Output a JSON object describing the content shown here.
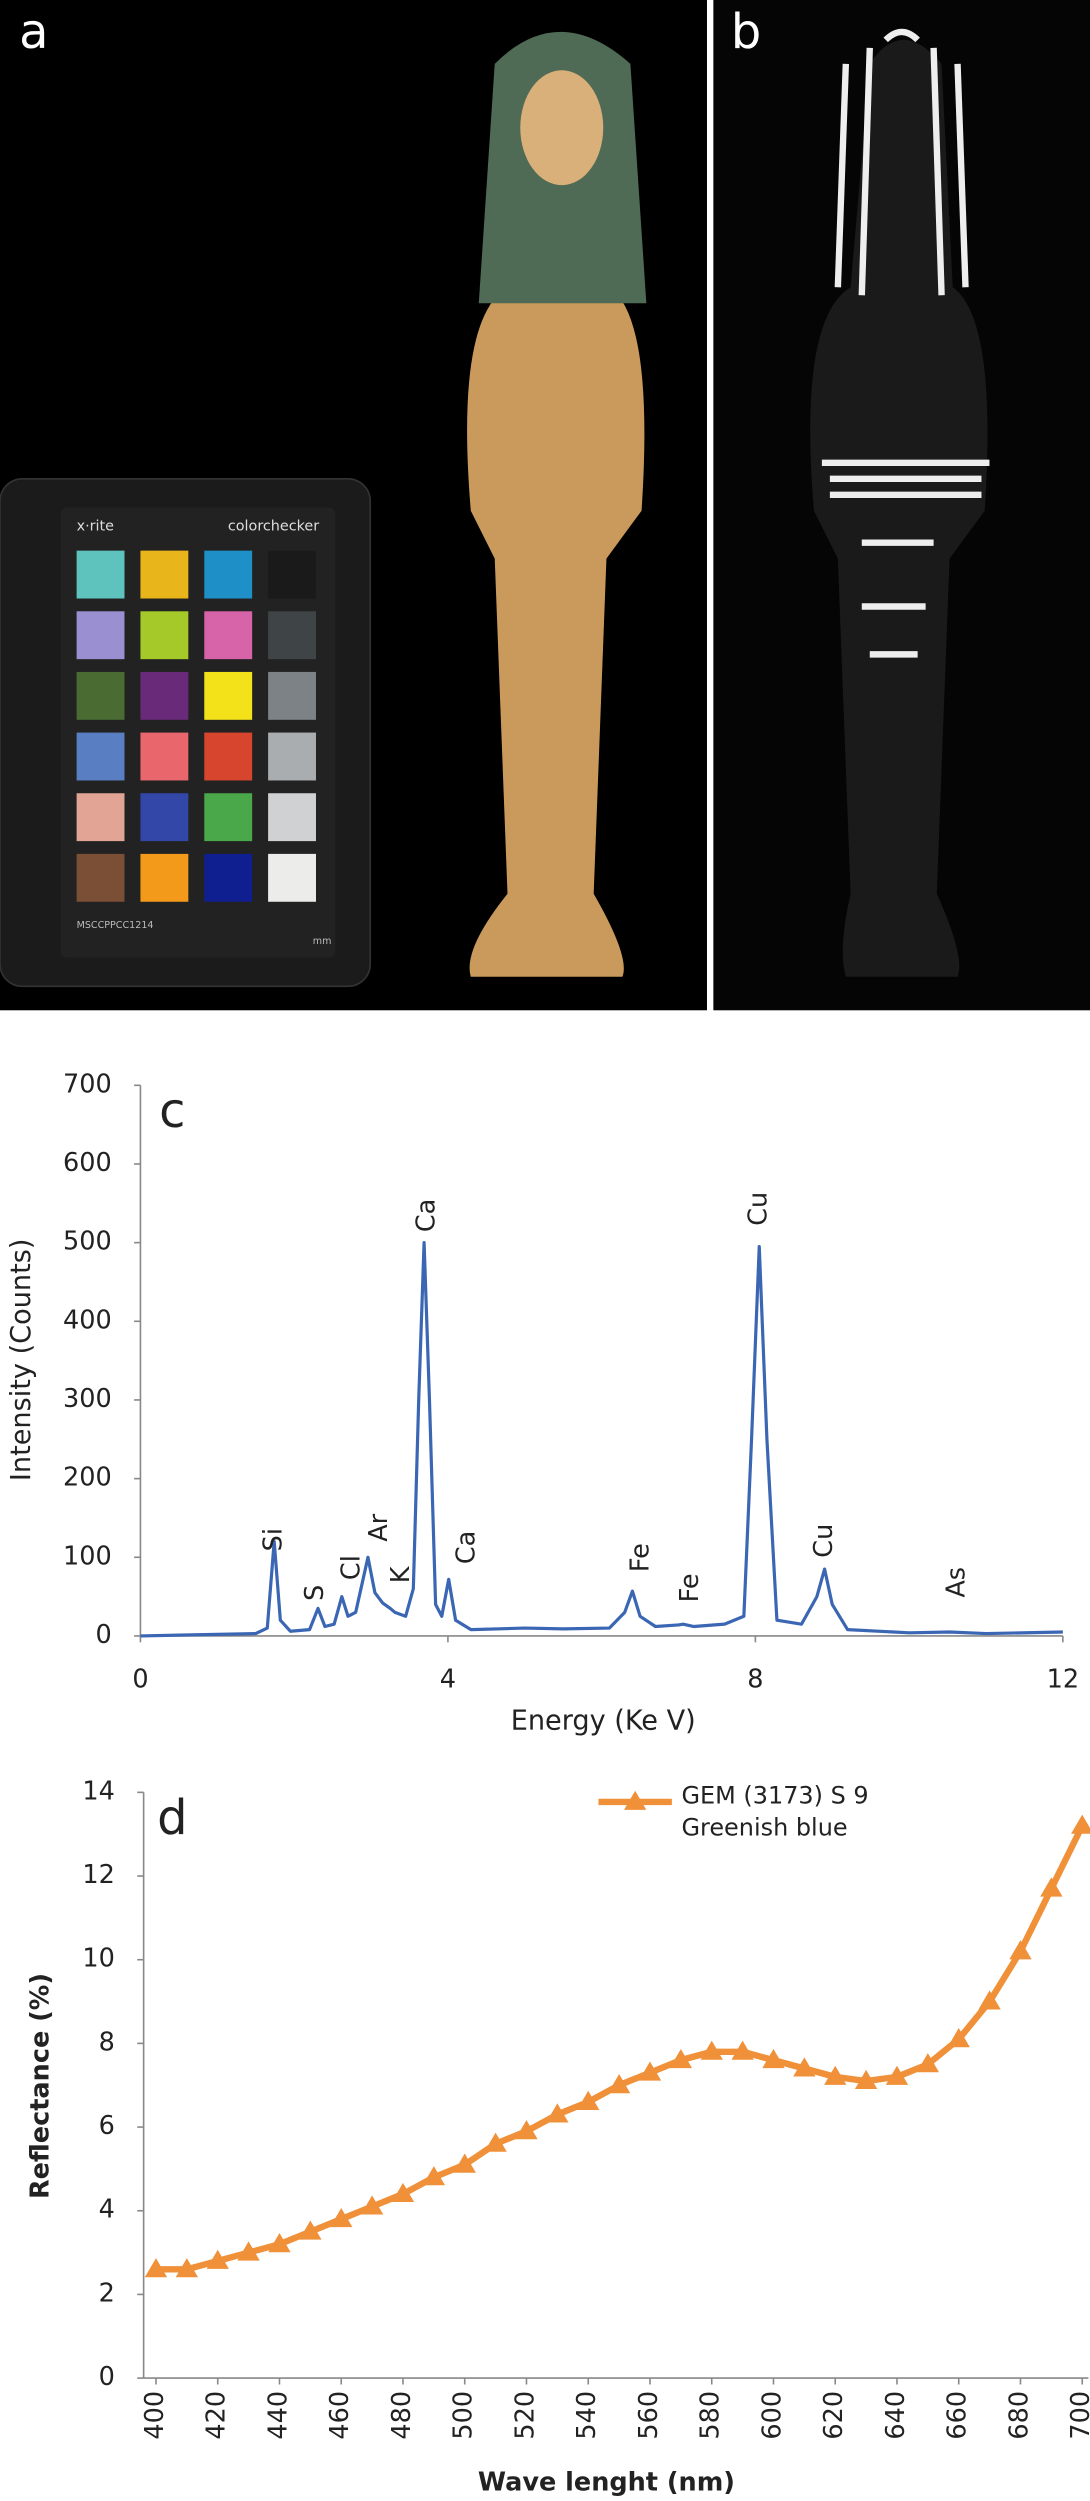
{
  "photos": {
    "panel_a": "a",
    "panel_b": "b",
    "card_brand": "x·rite",
    "card_name": "colorchecker",
    "card_code": "MSCCPPCC1214",
    "card_unit": "mm"
  },
  "chart_data": [
    {
      "type": "line",
      "panel_label": "c",
      "x_label": "Energy (Ke V)",
      "y_label": "Intensity (Counts)",
      "xlim": [
        0,
        12
      ],
      "ylim": [
        0,
        700
      ],
      "xticks": [
        0,
        4,
        8,
        12
      ],
      "yticks": [
        0,
        100,
        200,
        300,
        400,
        500,
        600,
        700
      ],
      "grid": false,
      "annotations": [
        "Si",
        "S",
        "Cl",
        "Ar",
        "K",
        "Ca",
        "Ca",
        "Fe",
        "Fe",
        "Cu",
        "Cu",
        "As"
      ],
      "x": [
        0,
        0.5,
        1.0,
        1.5,
        1.65,
        1.74,
        1.82,
        1.95,
        2.2,
        2.31,
        2.4,
        2.52,
        2.62,
        2.7,
        2.8,
        2.96,
        3.05,
        3.15,
        3.25,
        3.31,
        3.45,
        3.55,
        3.62,
        3.69,
        3.76,
        3.84,
        3.92,
        4.01,
        4.1,
        4.3,
        5.0,
        5.5,
        6.1,
        6.3,
        6.4,
        6.5,
        6.7,
        7.0,
        7.06,
        7.2,
        7.6,
        7.85,
        7.95,
        8.05,
        8.15,
        8.28,
        8.6,
        8.8,
        8.9,
        9.0,
        9.2,
        10.0,
        10.53,
        11.0,
        12.0
      ],
      "series": [
        {
          "color": "#3a66b3",
          "values": [
            0,
            1,
            2,
            3,
            10,
            120,
            20,
            6,
            8,
            35,
            12,
            15,
            50,
            25,
            30,
            100,
            55,
            42,
            35,
            30,
            25,
            60,
            300,
            500,
            300,
            40,
            25,
            72,
            20,
            8,
            10,
            9,
            10,
            30,
            57,
            25,
            12,
            14,
            15,
            12,
            15,
            25,
            250,
            495,
            250,
            20,
            15,
            50,
            85,
            40,
            8,
            4,
            5,
            3,
            5
          ]
        }
      ]
    },
    {
      "type": "line",
      "panel_label": "d",
      "x_label": "Wave lenght (nm)",
      "y_label": "Reflectance (%)",
      "xlim": [
        396,
        702
      ],
      "ylim": [
        0,
        14
      ],
      "xticks": [
        400,
        420,
        440,
        460,
        480,
        500,
        520,
        540,
        560,
        580,
        600,
        620,
        640,
        660,
        680,
        700
      ],
      "yticks": [
        0,
        2,
        4,
        6,
        8,
        10,
        12,
        14
      ],
      "grid": false,
      "legend": "top-right",
      "x": [
        400,
        410,
        420,
        430,
        440,
        450,
        460,
        470,
        480,
        490,
        500,
        510,
        520,
        530,
        540,
        550,
        560,
        570,
        580,
        590,
        600,
        610,
        620,
        630,
        640,
        650,
        660,
        670,
        680,
        690,
        700
      ],
      "series": [
        {
          "name": "GEM (3173) S 9 Greenish blue",
          "color": "#f0913a",
          "marker": "triangle",
          "values": [
            2.6,
            2.6,
            2.8,
            3.0,
            3.2,
            3.5,
            3.8,
            4.1,
            4.4,
            4.8,
            5.1,
            5.6,
            5.9,
            6.3,
            6.6,
            7.0,
            7.3,
            7.6,
            7.8,
            7.8,
            7.6,
            7.4,
            7.2,
            7.1,
            7.2,
            7.5,
            8.1,
            9.0,
            10.2,
            11.7,
            13.2
          ]
        }
      ]
    }
  ]
}
